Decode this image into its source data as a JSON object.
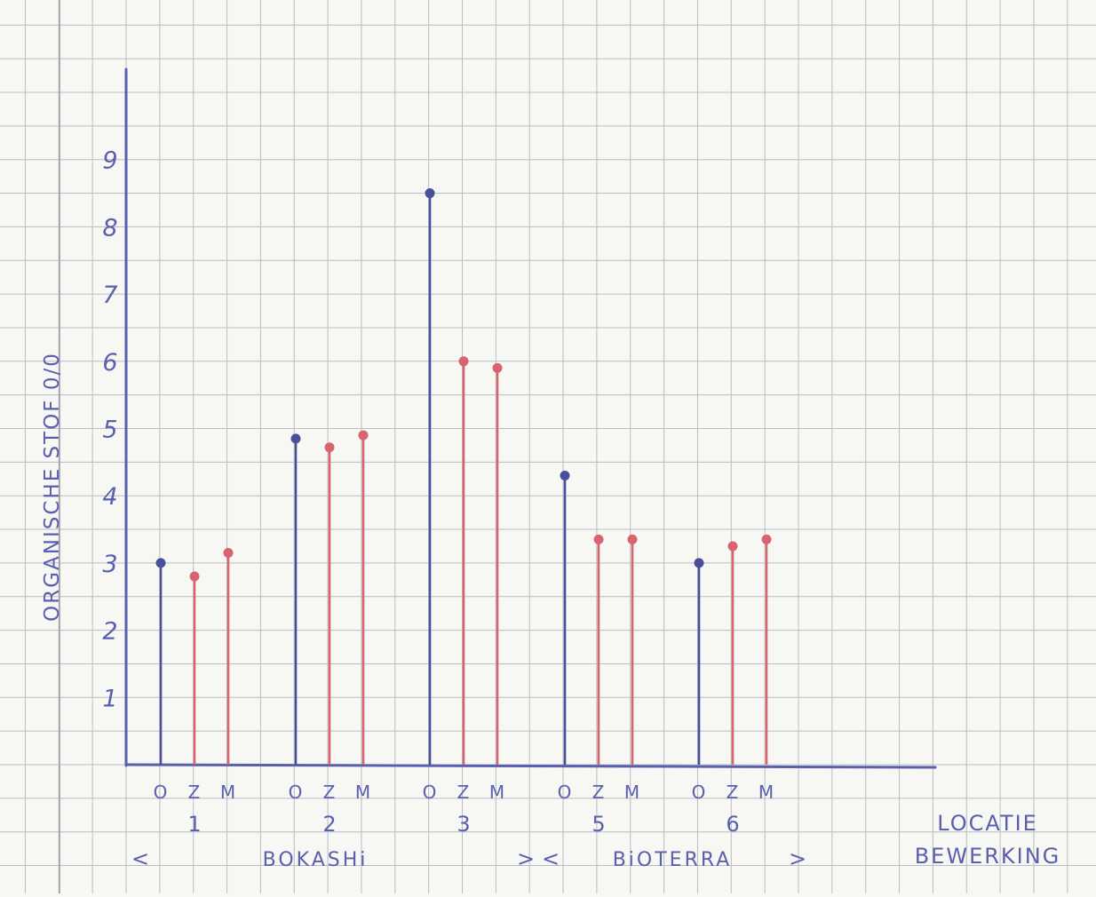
{
  "chart_data": {
    "type": "bar",
    "style": "lollipop",
    "ylabel": "ORGANISCHE STOF 0/0",
    "xlabel_lines": [
      "LOCATIE",
      "BEWERKING"
    ],
    "ylim": [
      0,
      10
    ],
    "yticks": [
      "1",
      "2",
      "3",
      "4",
      "5",
      "6",
      "7",
      "8",
      "9"
    ],
    "grid": true,
    "sub_categories": [
      "O",
      "Z",
      "M"
    ],
    "groups": [
      {
        "location": "1",
        "values": [
          3.0,
          2.8,
          3.15
        ]
      },
      {
        "location": "2",
        "values": [
          4.85,
          4.72,
          4.9
        ]
      },
      {
        "location": "3",
        "values": [
          8.5,
          6.0,
          5.9
        ]
      },
      {
        "location": "5",
        "values": [
          4.3,
          3.35,
          3.35
        ]
      },
      {
        "location": "6",
        "values": [
          3.0,
          3.25,
          3.35
        ]
      }
    ],
    "treatments": [
      {
        "open": "<",
        "name": "BOKASHi",
        "close": ">"
      },
      {
        "open": "<",
        "name": "BiOTERRA",
        "close": ">"
      }
    ],
    "colors": {
      "O": "#4a4f9c",
      "Z": "#d9636e",
      "M": "#d9636e",
      "axis": "#5a5fae",
      "grid": "#b9bcc4",
      "label": "#5a5fae",
      "paper": "#f7f7f4"
    }
  }
}
